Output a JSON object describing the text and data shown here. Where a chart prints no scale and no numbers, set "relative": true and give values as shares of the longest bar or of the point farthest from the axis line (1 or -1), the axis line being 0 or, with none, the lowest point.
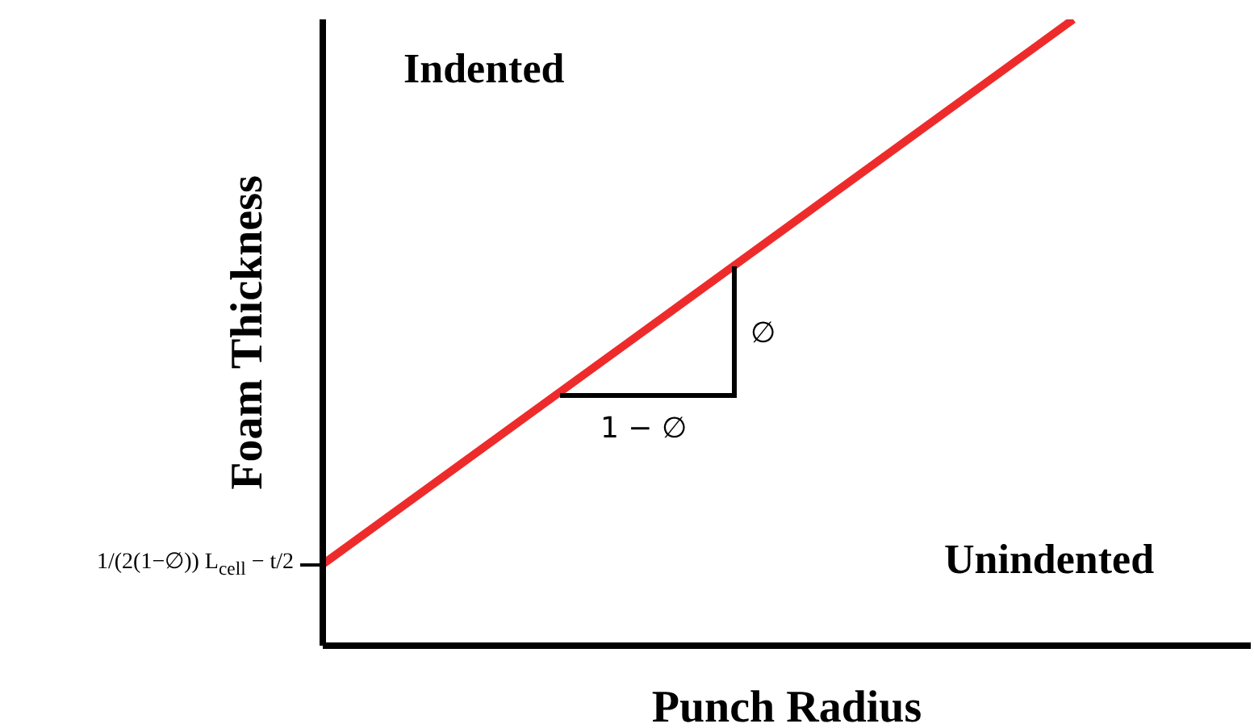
{
  "chart_data": {
    "type": "line",
    "relative": true,
    "xlabel": "Punch Radius",
    "ylabel": "Foam Thickness",
    "categories": [
      null,
      null
    ],
    "series": [
      {
        "color": "#ee2b2b",
        "values": [
          0.13,
          1
        ]
      }
    ],
    "annotations": [
      "Indented",
      "Unindented",
      "∅",
      "1 − ∅",
      "1/(2(1−∅)) L$_{cell}$ − t/2"
    ],
    "marker": "none",
    "line_style": "solid"
  }
}
